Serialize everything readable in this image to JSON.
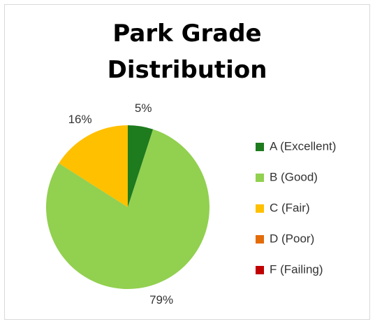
{
  "chart_data": {
    "type": "pie",
    "title": "Park Grade Distribution",
    "categories": [
      "A (Excellent)",
      "B (Good)",
      "C (Fair)",
      "D (Poor)",
      "F (Failing)"
    ],
    "values": [
      5,
      79,
      16,
      0,
      0
    ],
    "value_labels": [
      "5%",
      "79%",
      "16%",
      null,
      null
    ],
    "colors": [
      "#1e7b1e",
      "#92d050",
      "#ffc000",
      "#e36c09",
      "#c00000"
    ],
    "legend": "right"
  }
}
